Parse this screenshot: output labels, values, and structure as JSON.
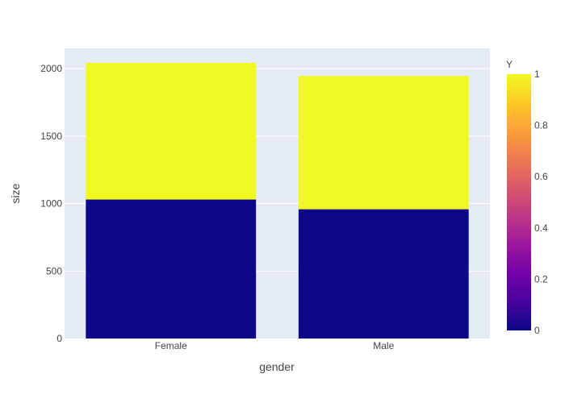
{
  "chart_data": {
    "type": "bar",
    "barmode": "stack",
    "categories": [
      "Female",
      "Male"
    ],
    "series": [
      {
        "name": "0",
        "values": [
          1030,
          958
        ],
        "color": "#0d0887"
      },
      {
        "name": "1",
        "values": [
          1013,
          987
        ],
        "color": "#f0f921"
      }
    ],
    "xlabel": "gender",
    "ylabel": "size",
    "ylim": [
      0,
      2150
    ],
    "yticks": [
      0,
      500,
      1000,
      1500,
      2000
    ],
    "ytick_labels": [
      "0",
      "500",
      "1000",
      "1500",
      "2000"
    ],
    "grid": true,
    "plot_background": "#e5ecf6",
    "colorbar": {
      "title": "Y",
      "range": [
        0,
        1
      ],
      "ticks": [
        "0",
        "0.2",
        "0.4",
        "0.6",
        "0.8",
        "1"
      ],
      "colorscale": [
        "#0d0887",
        "#46039f",
        "#7201a8",
        "#9c179e",
        "#bd3786",
        "#d8576b",
        "#ed7953",
        "#fb9f3a",
        "#fdca26",
        "#f0f921"
      ]
    }
  }
}
